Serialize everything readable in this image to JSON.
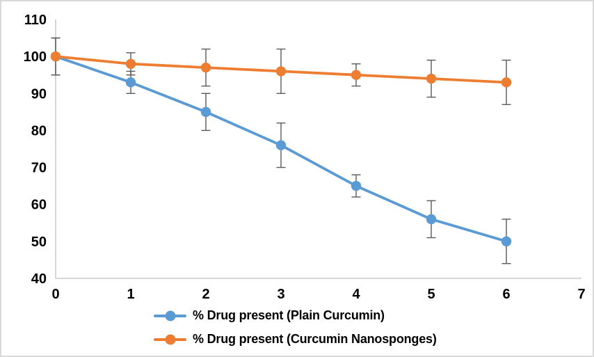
{
  "chart_data": {
    "type": "line",
    "title": "",
    "xlabel": "",
    "ylabel": "",
    "x": [
      0,
      1,
      2,
      3,
      4,
      5,
      6
    ],
    "series": [
      {
        "name": "% Drug present (Plain Curcumin)",
        "color": "#5B9BD5",
        "values": [
          100,
          93,
          85,
          76,
          65,
          56,
          50
        ],
        "error_bars": [
          5,
          3,
          5,
          6,
          3,
          5,
          6
        ]
      },
      {
        "name": "% Drug present (Curcumin Nanosponges)",
        "color": "#ED7D31",
        "values": [
          100,
          98,
          97,
          96,
          95,
          94,
          93
        ],
        "error_bars": [
          5,
          3,
          5,
          6,
          3,
          5,
          6
        ]
      }
    ],
    "xlim": [
      0,
      7
    ],
    "ylim": [
      40,
      110
    ],
    "x_ticks": [
      0,
      1,
      2,
      3,
      4,
      5,
      6,
      7
    ],
    "y_ticks": [
      40,
      50,
      60,
      70,
      80,
      90,
      100,
      110
    ],
    "grid": false,
    "marker": "circle",
    "legend_position": "bottom",
    "error_bar_color": "#595959",
    "axis_color": "#BFBFBF",
    "tick_label_color": "#000000",
    "background": "#FFFFFF"
  }
}
